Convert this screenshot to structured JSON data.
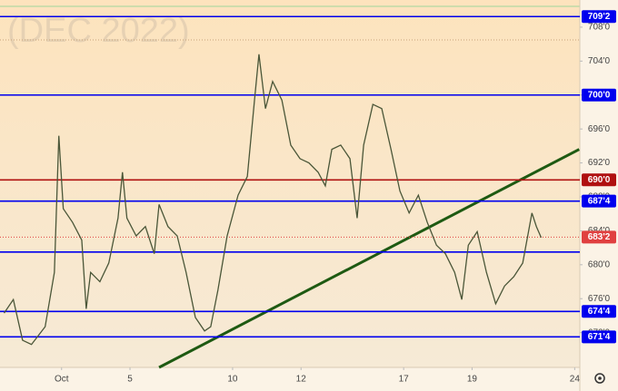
{
  "chart_data": {
    "type": "line",
    "watermark": "(DEC 2022)",
    "xlim": [
      -1.8,
      15.15
    ],
    "ylim": [
      667.9,
      711.2
    ],
    "xticks": [
      {
        "value": 0,
        "label": "Oct"
      },
      {
        "value": 2,
        "label": "5"
      },
      {
        "value": 5,
        "label": "10"
      },
      {
        "value": 7,
        "label": "12"
      },
      {
        "value": 10,
        "label": "17"
      },
      {
        "value": 12,
        "label": "19"
      },
      {
        "value": 15,
        "label": "24"
      }
    ],
    "yticks": [
      {
        "value": 708,
        "label": "708'0"
      },
      {
        "value": 704,
        "label": "704'0"
      },
      {
        "value": 700,
        "label": "700'0"
      },
      {
        "value": 696,
        "label": "696'0"
      },
      {
        "value": 692,
        "label": "692'0"
      },
      {
        "value": 688,
        "label": "688'0"
      },
      {
        "value": 684,
        "label": "684'0"
      },
      {
        "value": 680,
        "label": "680'0"
      },
      {
        "value": 676,
        "label": "676'0"
      },
      {
        "value": 672,
        "label": "672'0"
      }
    ],
    "series": [
      {
        "color": "#4a5638",
        "x": [
          -1.68,
          -1.41,
          -1.14,
          -0.88,
          -0.48,
          -0.21,
          -0.08,
          0.05,
          0.32,
          0.59,
          0.72,
          0.85,
          1.12,
          1.38,
          1.65,
          1.78,
          1.91,
          2.18,
          2.45,
          2.71,
          2.85,
          3.11,
          3.38,
          3.64,
          3.91,
          4.18,
          4.36,
          4.57,
          4.84,
          5.16,
          5.43,
          5.64,
          5.77,
          5.96,
          6.17,
          6.44,
          6.7,
          6.97,
          7.23,
          7.5,
          7.71,
          7.9,
          8.16,
          8.43,
          8.64,
          8.83,
          9.1,
          9.36,
          9.63,
          9.89,
          10.16,
          10.43,
          10.69,
          10.96,
          11.22,
          11.49,
          11.7,
          11.89,
          12.15,
          12.42,
          12.69,
          12.95,
          13.22,
          13.48,
          13.75,
          13.88,
          14.02
        ],
        "values": [
          674.3,
          675.9,
          671.1,
          670.6,
          672.7,
          679.1,
          695.2,
          686.6,
          685,
          682.9,
          674.8,
          679.1,
          678,
          680.2,
          685.5,
          690.9,
          685.5,
          683.4,
          684.5,
          681.3,
          687.1,
          684.5,
          683.4,
          679.1,
          673.8,
          672.2,
          672.7,
          677,
          683.4,
          688.2,
          690.4,
          699.4,
          704.8,
          698.4,
          701.6,
          699.4,
          694.1,
          692.5,
          692,
          690.9,
          689.3,
          693.6,
          694.1,
          692.5,
          685.5,
          694.1,
          698.9,
          698.4,
          693.6,
          688.7,
          686.1,
          688.2,
          685,
          682.3,
          681.3,
          679.1,
          675.9,
          682.3,
          683.9,
          679.1,
          675.4,
          677.5,
          678.6,
          680.2,
          686.1,
          684.5,
          683.2
        ]
      }
    ],
    "trendline": {
      "color": "#1e5a12",
      "x": [
        2.85,
        15.13
      ],
      "y": [
        667.9,
        693.6
      ]
    },
    "levels": [
      {
        "value": 709.25,
        "label": "709'2",
        "color": "#0000ee"
      },
      {
        "value": 706.5,
        "color": "#c9a27a",
        "style": "dotted"
      },
      {
        "value": 700,
        "label": "700'0",
        "color": "#0000ee"
      },
      {
        "value": 690,
        "label": "690'0",
        "color": "#b01010"
      },
      {
        "value": 687.5,
        "label": "687'4",
        "color": "#0000ee"
      },
      {
        "value": 683.25,
        "label": "683'2",
        "color": "#e04040",
        "style": "dotted"
      },
      {
        "value": 681.5,
        "color": "#0000ee"
      },
      {
        "value": 674.5,
        "label": "674'4",
        "color": "#0000ee"
      },
      {
        "value": 671.5,
        "label": "671'4",
        "color": "#0000ee"
      }
    ]
  }
}
